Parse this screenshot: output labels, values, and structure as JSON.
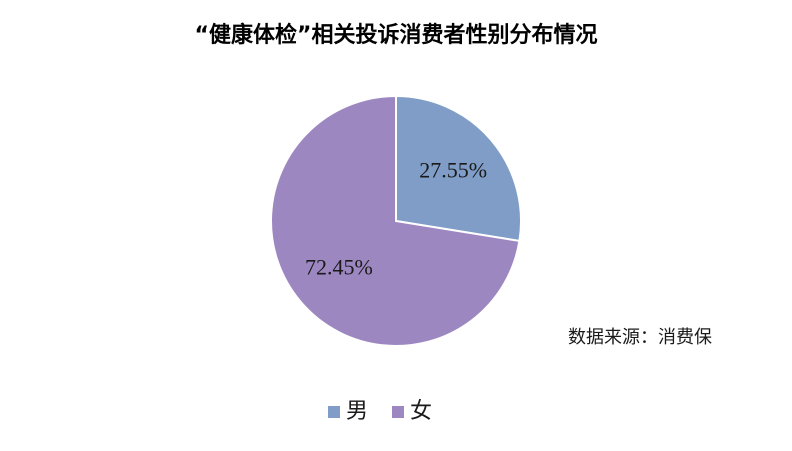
{
  "chart_data": {
    "type": "pie",
    "title": "“健康体检”相关投诉消费者性别分布情况",
    "categories": [
      "男",
      "女"
    ],
    "values": [
      27.55,
      72.45
    ],
    "value_labels": [
      "27.55%",
      "72.45%"
    ],
    "colors": [
      "#7f9dc6",
      "#9d87c1"
    ],
    "annotation": "数据来源：消费保",
    "legend": "bottom"
  }
}
